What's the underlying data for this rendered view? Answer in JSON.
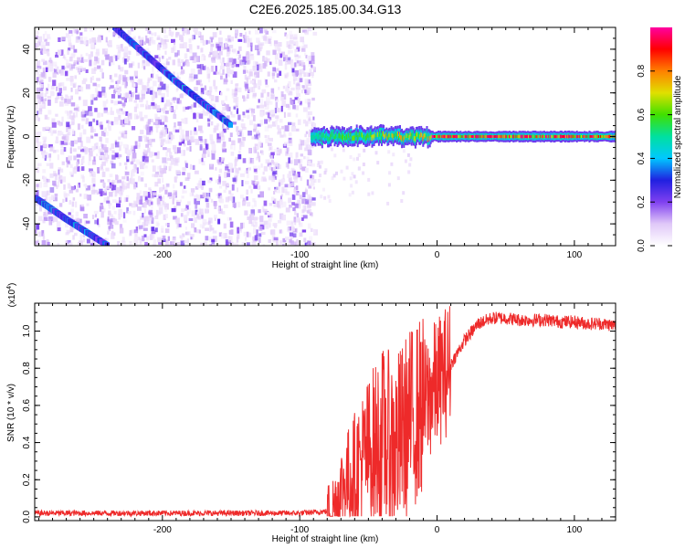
{
  "title": "C2E6.2025.185.00.34.G13",
  "chart_data": [
    {
      "type": "heatmap",
      "xlabel": "Height of straight line (km)",
      "ylabel": "Frequency (Hz)",
      "xlim": [
        -293,
        130
      ],
      "ylim": [
        -50,
        50
      ],
      "xticks": [
        "-200",
        "-100",
        "0",
        "100"
      ],
      "xtick_values": [
        -200,
        -100,
        0,
        100
      ],
      "yticks": [
        "-40",
        "-20",
        "0",
        "20",
        "40"
      ],
      "ytick_values": [
        -40,
        -20,
        0,
        20,
        40
      ],
      "colorbar": {
        "label": "Normalized spectral amplitude",
        "range": [
          0.0,
          1.0
        ],
        "ticks": [
          "0.0",
          "0.2",
          "0.4",
          "0.6",
          "0.8"
        ],
        "tick_values": [
          0.0,
          0.2,
          0.4,
          0.6,
          0.8
        ],
        "colormap": [
          "#ffffff",
          "#e0c8f8",
          "#8040f0",
          "#2020e0",
          "#00c8ff",
          "#00e0a0",
          "#40e000",
          "#e0e000",
          "#ff8000",
          "#ff0000",
          "#ff00a0"
        ]
      },
      "features": {
        "noise_region_x": [
          -293,
          -90
        ],
        "signal_line": {
          "x_start": -92,
          "frequency": 0,
          "peak_amplitude": 1.0
        },
        "diagonal_tracks": [
          {
            "x": [
              -235,
              -190,
              -150
            ],
            "y": [
              50,
              25,
              5
            ]
          },
          {
            "x": [
              -293,
              -270,
              -240
            ],
            "y": [
              -28,
              -38,
              -50
            ]
          }
        ]
      }
    },
    {
      "type": "line",
      "xlabel": "Height of straight line (km)",
      "ylabel": "SNR (10 * v/v)",
      "yscale_label": "(x10",
      "yscale_exp": "4",
      "xlim": [
        -293,
        130
      ],
      "ylim": [
        -0.02,
        1.15
      ],
      "xticks": [
        "-200",
        "-100",
        "0",
        "100"
      ],
      "xtick_values": [
        -200,
        -100,
        0,
        100
      ],
      "yticks": [
        "0.0",
        "0.2",
        "0.4",
        "0.6",
        "0.8",
        "1.0"
      ],
      "ytick_values": [
        0.0,
        0.2,
        0.4,
        0.6,
        0.8,
        1.0
      ],
      "color": "#ee2a2a",
      "series": [
        {
          "x": [
            -293,
            -200,
            -100,
            -80,
            -75,
            -70,
            -60,
            -50,
            -40,
            -30,
            -20,
            -10,
            0,
            10,
            20,
            30,
            40,
            50,
            60,
            70,
            80,
            90,
            100,
            110,
            120,
            130
          ],
          "y": [
            0.02,
            0.02,
            0.02,
            0.03,
            0.06,
            0.15,
            0.25,
            0.35,
            0.42,
            0.38,
            0.52,
            0.6,
            0.72,
            0.82,
            0.95,
            1.04,
            1.07,
            1.07,
            1.06,
            1.06,
            1.06,
            1.05,
            1.05,
            1.04,
            1.04,
            1.03
          ]
        }
      ]
    }
  ]
}
